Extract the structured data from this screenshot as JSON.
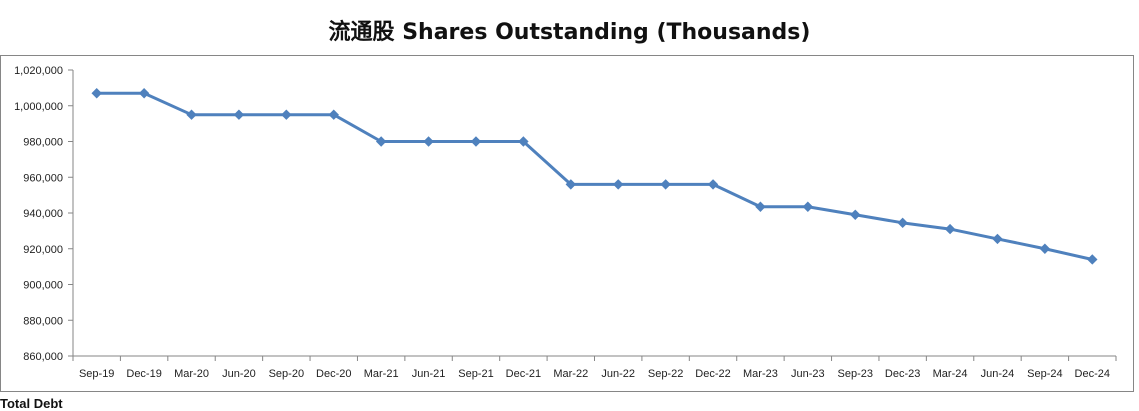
{
  "chart_data": {
    "type": "line",
    "title": "流通股 Shares Outstanding (Thousands)",
    "categories": [
      "Sep-19",
      "Dec-19",
      "Mar-20",
      "Jun-20",
      "Sep-20",
      "Dec-20",
      "Mar-21",
      "Jun-21",
      "Sep-21",
      "Dec-21",
      "Mar-22",
      "Jun-22",
      "Sep-22",
      "Dec-22",
      "Mar-23",
      "Jun-23",
      "Sep-23",
      "Dec-23",
      "Mar-24",
      "Jun-24",
      "Sep-24",
      "Dec-24"
    ],
    "values": [
      1007000,
      1007000,
      995000,
      995000,
      995000,
      995000,
      980000,
      980000,
      980000,
      980000,
      956000,
      956000,
      956000,
      956000,
      943500,
      943500,
      939000,
      934500,
      931000,
      925500,
      920000,
      914000
    ],
    "ylim": [
      860000,
      1020000
    ],
    "yticks": [
      860000,
      880000,
      900000,
      920000,
      940000,
      960000,
      980000,
      1000000,
      1020000
    ],
    "ytick_labels": [
      "860,000",
      "880,000",
      "900,000",
      "920,000",
      "940,000",
      "960,000",
      "980,000",
      "1,000,000",
      "1,020,000"
    ],
    "xlabel": "",
    "ylabel": "",
    "grid": false,
    "legend": "none",
    "series_color": "#4F81BD",
    "axis_color": "#868686",
    "border_color": "#868686",
    "marker": "diamond"
  },
  "footer": {
    "cut_label": "Total Debt"
  }
}
